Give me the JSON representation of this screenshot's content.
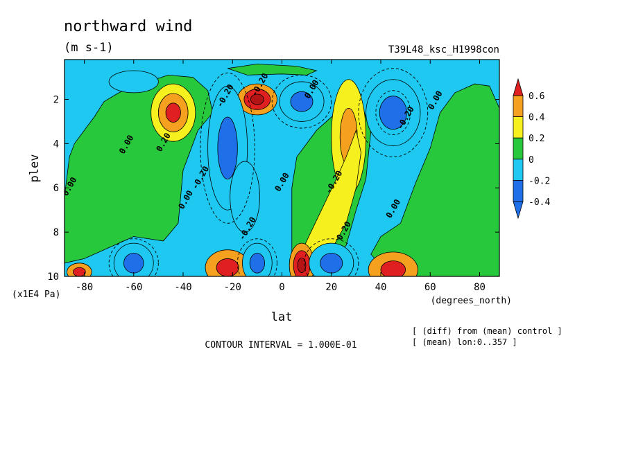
{
  "chart_data": {
    "type": "heatmap",
    "title": "northward wind",
    "units": "(m s-1)",
    "run_label": "T39L48_ksc_H1998con",
    "xlabel": "lat",
    "xunits": "(degrees_north)",
    "ylabel": "plev",
    "yunits": "(x1E4 Pa)",
    "xlim": [
      -88,
      88
    ],
    "ylim": [
      10,
      0.2
    ],
    "x_ticks": [
      -80,
      -60,
      -40,
      -20,
      0,
      20,
      40,
      60,
      80
    ],
    "x_tick_labels": [
      "-80",
      "-60",
      "-40",
      "-20",
      "0",
      "20",
      "40",
      "60",
      "80"
    ],
    "y_ticks": [
      2,
      4,
      6,
      8,
      10
    ],
    "y_tick_labels": [
      "2",
      "4",
      "6",
      "8",
      "10"
    ],
    "contour_interval_text": "CONTOUR INTERVAL = 1.000E-01",
    "notes": [
      "[ (diff) from (mean) control ]",
      "[ (mean) lon:0..357 ]"
    ],
    "colorbar": {
      "levels": [
        -0.4,
        -0.2,
        0,
        0.2,
        0.4,
        0.6
      ],
      "labels": [
        "-0.4",
        "-0.2",
        "0",
        "0.2",
        "0.4",
        "0.6"
      ],
      "colors": [
        "#1e6fe8",
        "#1ec8f0",
        "#28c83c",
        "#f5f01e",
        "#f5a01e",
        "#e02020",
        "#b41414"
      ]
    },
    "contour_labels": [
      {
        "text": "0.00",
        "lat": -62,
        "p": 4.1
      },
      {
        "text": "0.20",
        "lat": -47,
        "p": 4.0
      },
      {
        "text": "0.00",
        "lat": -85,
        "p": 6.0
      },
      {
        "text": "0.00",
        "lat": -38,
        "p": 6.6
      },
      {
        "text": "-0.20",
        "lat": -32,
        "p": 5.6
      },
      {
        "text": "-0.20",
        "lat": -13,
        "p": 7.9
      },
      {
        "text": "-0.20",
        "lat": -22,
        "p": 1.9
      },
      {
        "text": "-0.20",
        "lat": -8,
        "p": 1.4
      },
      {
        "text": "0.00",
        "lat": 1,
        "p": 5.8
      },
      {
        "text": "-0.20",
        "lat": 22,
        "p": 5.8
      },
      {
        "text": "0.20",
        "lat": 26,
        "p": 8.0
      },
      {
        "text": "0.00",
        "lat": 46,
        "p": 7.0
      },
      {
        "text": "-0.20",
        "lat": 51,
        "p": 2.9
      },
      {
        "text": "0.00",
        "lat": 63,
        "p": 2.1
      },
      {
        "text": "0.00",
        "lat": 13,
        "p": 1.6
      }
    ],
    "features": [
      {
        "type": "max",
        "lat": -44,
        "p": 2.6,
        "value": 0.6
      },
      {
        "type": "min",
        "lat": 44,
        "p": 2.6,
        "value": -0.4
      },
      {
        "type": "max",
        "lat": 27,
        "p": 3.6,
        "value": 0.4
      },
      {
        "type": "max",
        "lat": -12,
        "p": 1.9,
        "value": 0.6
      },
      {
        "type": "min",
        "lat": 6,
        "p": 2.1,
        "value": -0.4
      },
      {
        "type": "min",
        "lat": -22,
        "p": 4.0,
        "value": -0.2
      },
      {
        "type": "max",
        "lat": -22,
        "p": 9.5,
        "value": 0.6
      },
      {
        "type": "max",
        "lat": 8,
        "p": 9.5,
        "value": 0.6
      },
      {
        "type": "max",
        "lat": 45,
        "p": 9.6,
        "value": 0.6
      },
      {
        "type": "max",
        "lat": -82,
        "p": 9.7,
        "value": 0.6
      },
      {
        "type": "min",
        "lat": -10,
        "p": 9.4,
        "value": -0.4
      },
      {
        "type": "min",
        "lat": 20,
        "p": 9.4,
        "value": -0.4
      },
      {
        "type": "min",
        "lat": -60,
        "p": 9.4,
        "value": -0.4
      }
    ]
  }
}
